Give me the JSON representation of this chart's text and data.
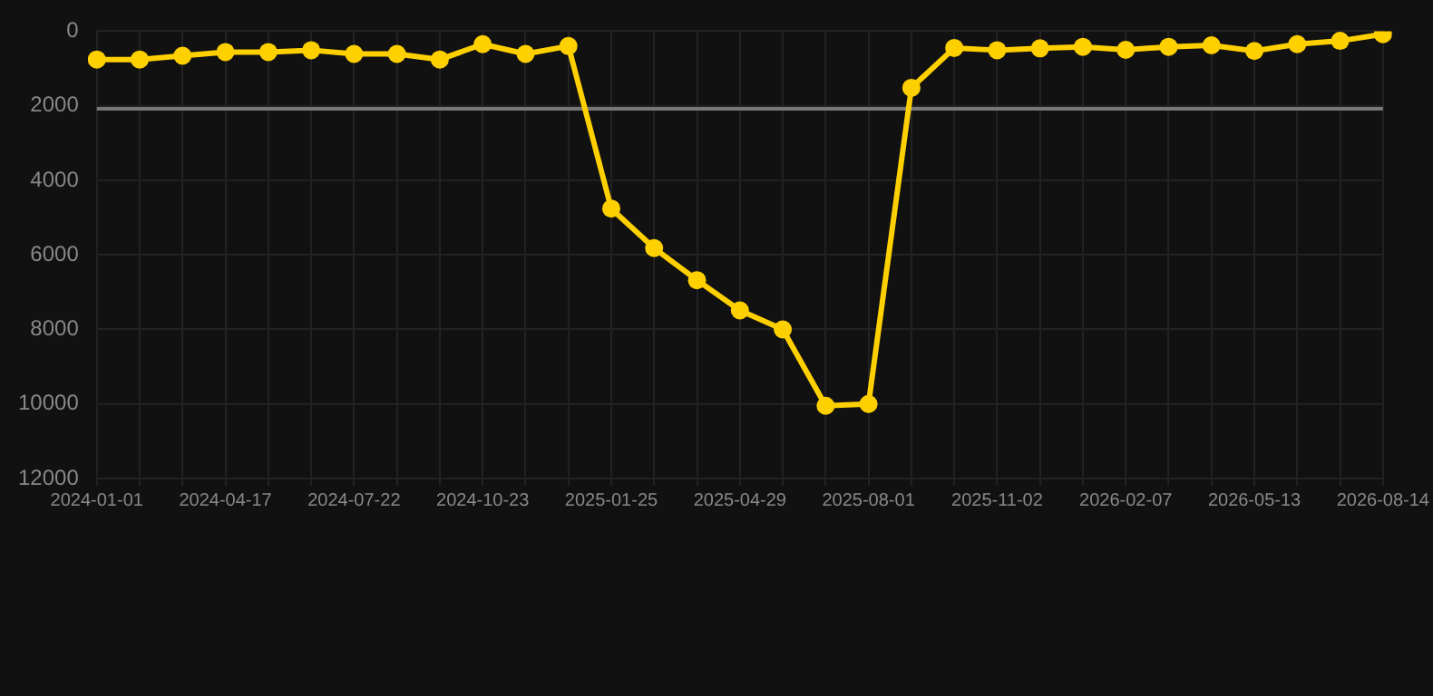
{
  "chart_data": {
    "type": "line",
    "categories": [
      "2024-01-01",
      null,
      null,
      "2024-04-17",
      null,
      null,
      "2024-07-22",
      null,
      null,
      "2024-10-23",
      null,
      null,
      "2025-01-25",
      null,
      null,
      "2025-04-29",
      null,
      null,
      "2025-08-01",
      null,
      null,
      "2025-11-02",
      null,
      null,
      "2026-02-07",
      null,
      null,
      "2026-05-13",
      null,
      null,
      "2026-08-14"
    ],
    "series": [
      {
        "color": "#ffd000",
        "values": [
          760,
          760,
          660,
          560,
          560,
          510,
          610,
          610,
          760,
          350,
          610,
          400,
          4760,
          5820,
          6680,
          7490,
          8000,
          10050,
          10000,
          1520,
          450,
          510,
          460,
          420,
          500,
          420,
          380,
          530,
          350,
          260,
          80
        ]
      }
    ],
    "ylim": [
      12000,
      0
    ],
    "yticks": [
      0,
      2000,
      4000,
      6000,
      8000,
      10000,
      12000
    ],
    "ref_lines": [
      {
        "axis": "y",
        "value": 2080,
        "color": "#777777"
      }
    ],
    "grid": true,
    "legend": false,
    "marker": "circle",
    "line_style": "solid"
  }
}
